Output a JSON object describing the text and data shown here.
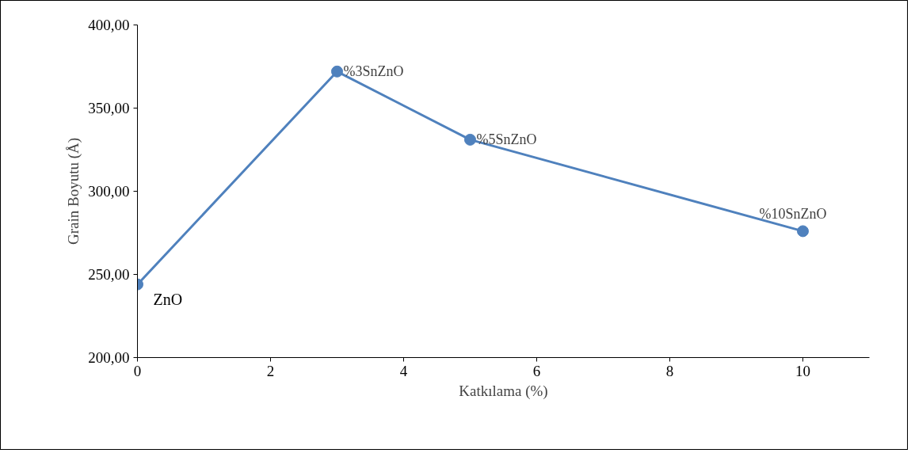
{
  "chart_data": {
    "type": "line",
    "xlabel": "Katkılama (%)",
    "ylabel": "Grain Boyutu (Å)",
    "x": [
      0,
      3,
      5,
      10
    ],
    "series": [
      {
        "color": "#4f81bd",
        "values": [
          244,
          372,
          331,
          276
        ]
      }
    ],
    "xlim": [
      0,
      11
    ],
    "xticks": [
      0,
      2,
      4,
      6,
      8,
      10
    ],
    "ylim": [
      200,
      400
    ],
    "yticks": [
      {
        "value": 200,
        "label": "200,00"
      },
      {
        "value": 250,
        "label": "250,00"
      },
      {
        "value": 300,
        "label": "300,00"
      },
      {
        "value": 350,
        "label": "350,00"
      },
      {
        "value": 400,
        "label": "400,00"
      }
    ],
    "grid": false,
    "marker": "circle",
    "line_style": "solid",
    "annotations": [
      {
        "text": "ZnO",
        "x": 0,
        "y": 244
      },
      {
        "text": "%3SnZnO",
        "x": 3,
        "y": 372
      },
      {
        "text": "%5SnZnO",
        "x": 5,
        "y": 331
      },
      {
        "text": "%10SnZnO",
        "x": 10,
        "y": 276
      }
    ]
  }
}
